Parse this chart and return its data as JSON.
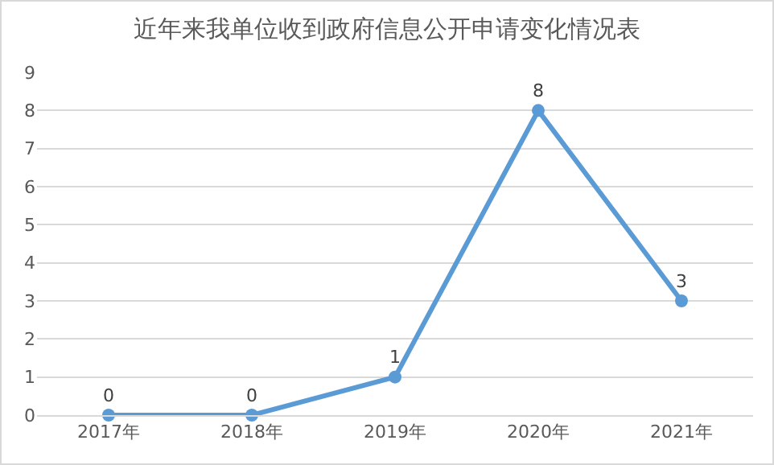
{
  "chart_data": {
    "type": "line",
    "title": "近年来我单位收到政府信息公开申请变化情况表",
    "categories": [
      "2017年",
      "2018年",
      "2019年",
      "2020年",
      "2021年"
    ],
    "series": [
      {
        "color": "#5b9bd5",
        "values": [
          0,
          0,
          1,
          8,
          3
        ]
      }
    ],
    "ylim": [
      0,
      9
    ],
    "yticks": [
      0,
      1,
      2,
      3,
      4,
      5,
      6,
      7,
      8,
      9
    ],
    "grid": "y",
    "marker": "circle",
    "line_style": "solid",
    "data_labels": true,
    "legend": false
  }
}
